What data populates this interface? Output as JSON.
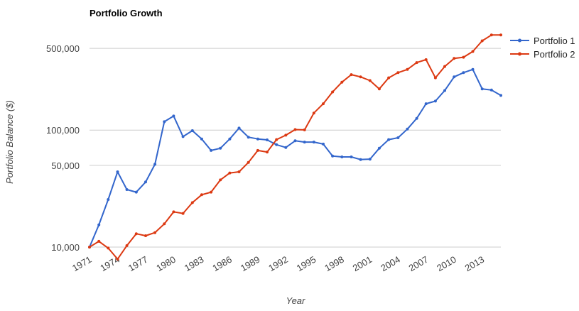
{
  "chart_data": {
    "type": "line",
    "title": "Portfolio Growth",
    "xlabel": "Year",
    "ylabel": "Portfolio Balance ($)",
    "yscale": "log",
    "ylim": [
      10000,
      700000
    ],
    "xlim": [
      1971,
      2015
    ],
    "yticks": [
      10000,
      50000,
      100000,
      500000
    ],
    "ytick_labels": [
      "10,000",
      "50,000",
      "100,000",
      "500,000"
    ],
    "xticks": [
      1971,
      1974,
      1977,
      1980,
      1983,
      1986,
      1989,
      1992,
      1995,
      1998,
      2001,
      2004,
      2007,
      2010,
      2013
    ],
    "grid": true,
    "legend_position": "right",
    "x": [
      1971,
      1972,
      1973,
      1974,
      1975,
      1976,
      1977,
      1978,
      1979,
      1980,
      1981,
      1982,
      1983,
      1984,
      1985,
      1986,
      1987,
      1988,
      1989,
      1990,
      1991,
      1992,
      1993,
      1994,
      1995,
      1996,
      1997,
      1998,
      1999,
      2000,
      2001,
      2002,
      2003,
      2004,
      2005,
      2006,
      2007,
      2008,
      2009,
      2010,
      2011,
      2012,
      2013,
      2014,
      2015
    ],
    "series": [
      {
        "name": "Portfolio 1",
        "color": "#3366cc",
        "values": [
          10000,
          15500,
          25500,
          44000,
          31000,
          29500,
          36000,
          51000,
          118000,
          132000,
          88000,
          99000,
          84000,
          67000,
          70000,
          84000,
          104000,
          87000,
          84000,
          82500,
          75000,
          71000,
          81000,
          79000,
          79000,
          76000,
          60000,
          59000,
          59000,
          56000,
          56500,
          70000,
          83000,
          86000,
          102000,
          126000,
          168000,
          177000,
          218000,
          285000,
          310000,
          330000,
          225000,
          220000,
          198000
        ]
      },
      {
        "name": "Portfolio 2",
        "color": "#dc3912",
        "values": [
          10000,
          11200,
          9800,
          7900,
          10300,
          13000,
          12500,
          13300,
          15800,
          20000,
          19400,
          24000,
          28000,
          29500,
          37500,
          43000,
          44000,
          53000,
          67000,
          65000,
          83000,
          90500,
          101000,
          100500,
          140000,
          168000,
          212000,
          257000,
          298000,
          285000,
          265000,
          225000,
          280000,
          310000,
          330000,
          378000,
          400000,
          280000,
          350000,
          410000,
          420000,
          470000,
          580000,
          650000,
          650000
        ]
      }
    ]
  }
}
